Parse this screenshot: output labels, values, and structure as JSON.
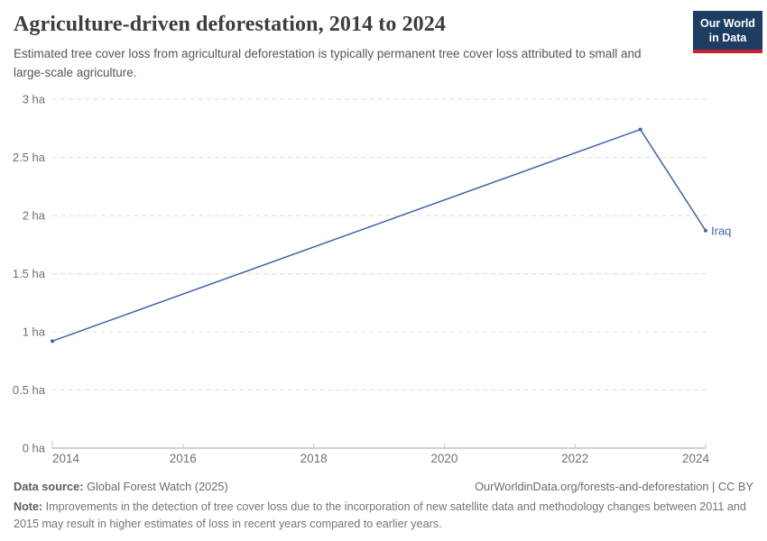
{
  "header": {
    "title": "Agriculture-driven deforestation, 2014 to 2024",
    "subtitle": "Estimated tree cover loss from agricultural deforestation is typically permanent tree cover loss attributed to small and large-scale agriculture.",
    "logo": {
      "line1": "Our World",
      "line2": "in Data"
    }
  },
  "chart_data": {
    "type": "line",
    "title": "Agriculture-driven deforestation, 2014 to 2024",
    "unit": "ha",
    "xlim": [
      2014,
      2024
    ],
    "ylim": [
      0,
      3
    ],
    "x_ticks": [
      2014,
      2016,
      2018,
      2020,
      2022,
      2024
    ],
    "y_ticks": [
      0,
      0.5,
      1,
      1.5,
      2,
      2.5,
      3
    ],
    "y_tick_suffix": " ha",
    "grid": "horizontal-dashed",
    "legend_position": "end-of-line-label",
    "series": [
      {
        "name": "Iraq",
        "color": "#4264a8",
        "x": [
          2014,
          2023,
          2024
        ],
        "values": [
          0.92,
          2.74,
          1.87
        ]
      }
    ]
  },
  "footer": {
    "source_label": "Data source:",
    "source_value": " Global Forest Watch (2025)",
    "attribution": "OurWorldinData.org/forests-and-deforestation | CC BY",
    "note_label": "Note:",
    "note_text": " Improvements in the detection of tree cover loss due to the incorporation of new satellite data and methodology changes between 2011 and 2015 may result in higher estimates of loss in recent years compared to earlier years."
  },
  "colors": {
    "series_blue": "#4264a8",
    "logo_bg": "#1d3d63",
    "logo_accent": "#c5212e",
    "gridline": "#dedede",
    "axis_line": "#a6a6a6",
    "tick_mark": "#c4c4c4",
    "tick_label": "#6e6e6e",
    "title_text": "#3d3d3d",
    "subtitle_text": "#555555"
  }
}
